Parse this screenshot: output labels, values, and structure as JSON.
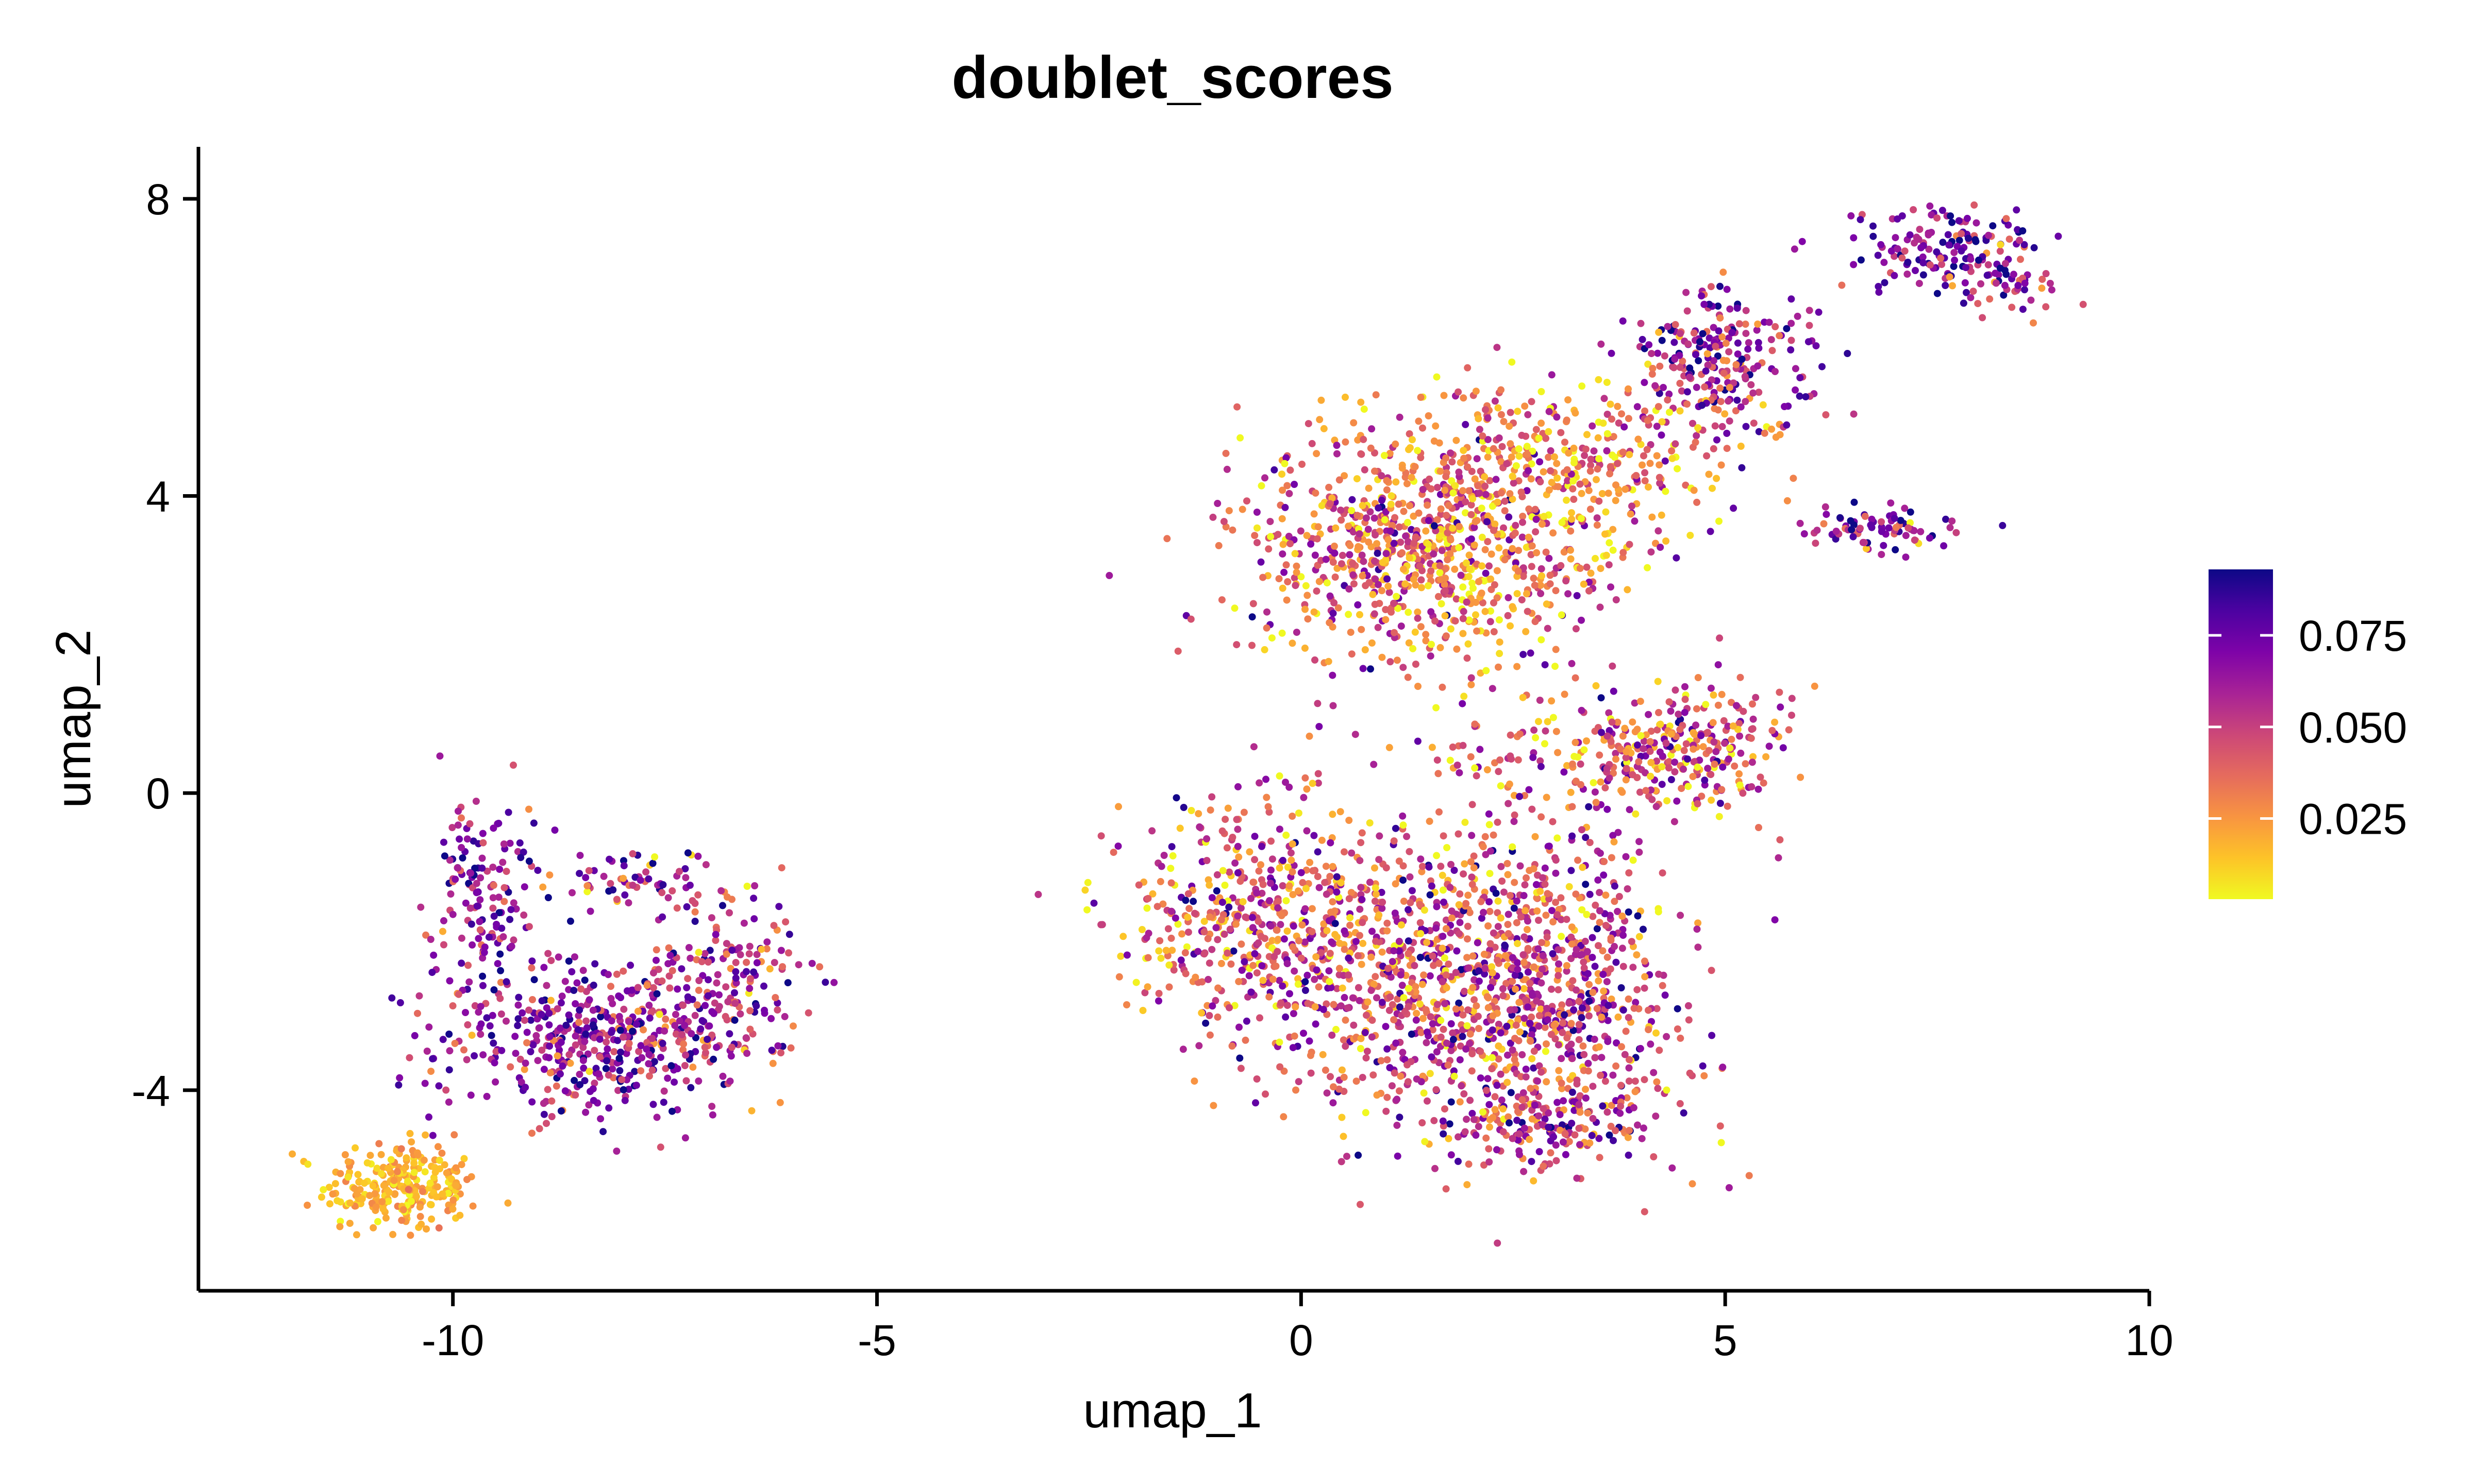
{
  "chart_data": {
    "type": "scatter",
    "title": "doublet_scores",
    "xlabel": "umap_1",
    "ylabel": "umap_2",
    "xlim": [
      -13,
      10
    ],
    "ylim": [
      -6.7,
      8.7
    ],
    "x_ticks": [
      -10,
      -5,
      0,
      5,
      10
    ],
    "x_tick_labels": [
      "-10",
      "-5",
      "0",
      "5",
      "10"
    ],
    "y_ticks": [
      -4,
      0,
      4,
      8
    ],
    "y_tick_labels": [
      "-4",
      "0",
      "4",
      "8"
    ],
    "grid": false,
    "legend_position": "right",
    "color_scale": {
      "name": "plasma",
      "min": 0.003,
      "max": 0.093,
      "ticks": [
        0.025,
        0.05,
        0.075
      ],
      "tick_labels": [
        "0.025",
        "0.050",
        "0.075"
      ],
      "colors": [
        "#f0f921",
        "#fdc328",
        "#f89441",
        "#e56b5d",
        "#cc4778",
        "#a82296",
        "#7e03a8",
        "#4c02a1",
        "#0d0887"
      ]
    },
    "clusters": [
      {
        "cx": -10.6,
        "cy": -5.3,
        "sx": 0.45,
        "sy": 0.3,
        "n": 260,
        "score_mean": 0.018,
        "score_sd": 0.007
      },
      {
        "cx": -9.7,
        "cy": -1.3,
        "sx": 0.3,
        "sy": 0.6,
        "n": 140,
        "score_mean": 0.065,
        "score_sd": 0.018
      },
      {
        "cx": -7.9,
        "cy": -1.2,
        "sx": 0.5,
        "sy": 0.25,
        "n": 70,
        "score_mean": 0.06,
        "score_sd": 0.02
      },
      {
        "cx": -8.3,
        "cy": -3.3,
        "sx": 0.95,
        "sy": 0.55,
        "n": 480,
        "score_mean": 0.065,
        "score_sd": 0.018
      },
      {
        "cx": -6.8,
        "cy": -2.5,
        "sx": 0.45,
        "sy": 0.6,
        "n": 170,
        "score_mean": 0.055,
        "score_sd": 0.02
      },
      {
        "cx": 1.5,
        "cy": 3.3,
        "sx": 1.1,
        "sy": 0.8,
        "n": 900,
        "score_mean": 0.035,
        "score_sd": 0.022
      },
      {
        "cx": 3.2,
        "cy": 4.5,
        "sx": 1.0,
        "sy": 0.5,
        "n": 300,
        "score_mean": 0.03,
        "score_sd": 0.02
      },
      {
        "cx": 5.0,
        "cy": 5.8,
        "sx": 0.55,
        "sy": 0.5,
        "n": 260,
        "score_mean": 0.055,
        "score_sd": 0.022
      },
      {
        "cx": 6.8,
        "cy": 3.55,
        "sx": 0.45,
        "sy": 0.15,
        "n": 80,
        "score_mean": 0.06,
        "score_sd": 0.02
      },
      {
        "cx": 7.6,
        "cy": 7.35,
        "sx": 0.55,
        "sy": 0.3,
        "n": 150,
        "score_mean": 0.07,
        "score_sd": 0.018
      },
      {
        "cx": 8.3,
        "cy": 6.8,
        "sx": 0.3,
        "sy": 0.25,
        "n": 40,
        "score_mean": 0.06,
        "score_sd": 0.02
      },
      {
        "cx": 4.5,
        "cy": 0.6,
        "sx": 0.6,
        "sy": 0.45,
        "n": 260,
        "score_mean": 0.045,
        "score_sd": 0.022
      },
      {
        "cx": 3.0,
        "cy": 0.4,
        "sx": 0.9,
        "sy": 0.4,
        "n": 120,
        "score_mean": 0.04,
        "score_sd": 0.022
      },
      {
        "cx": -0.7,
        "cy": -1.6,
        "sx": 0.75,
        "sy": 0.75,
        "n": 380,
        "score_mean": 0.04,
        "score_sd": 0.022
      },
      {
        "cx": 1.5,
        "cy": -2.4,
        "sx": 1.15,
        "sy": 1.0,
        "n": 900,
        "score_mean": 0.045,
        "score_sd": 0.022
      },
      {
        "cx": 3.1,
        "cy": -2.8,
        "sx": 0.8,
        "sy": 1.0,
        "n": 500,
        "score_mean": 0.05,
        "score_sd": 0.022
      },
      {
        "cx": 2.8,
        "cy": -4.5,
        "sx": 0.7,
        "sy": 0.25,
        "n": 140,
        "score_mean": 0.055,
        "score_sd": 0.022
      }
    ]
  }
}
